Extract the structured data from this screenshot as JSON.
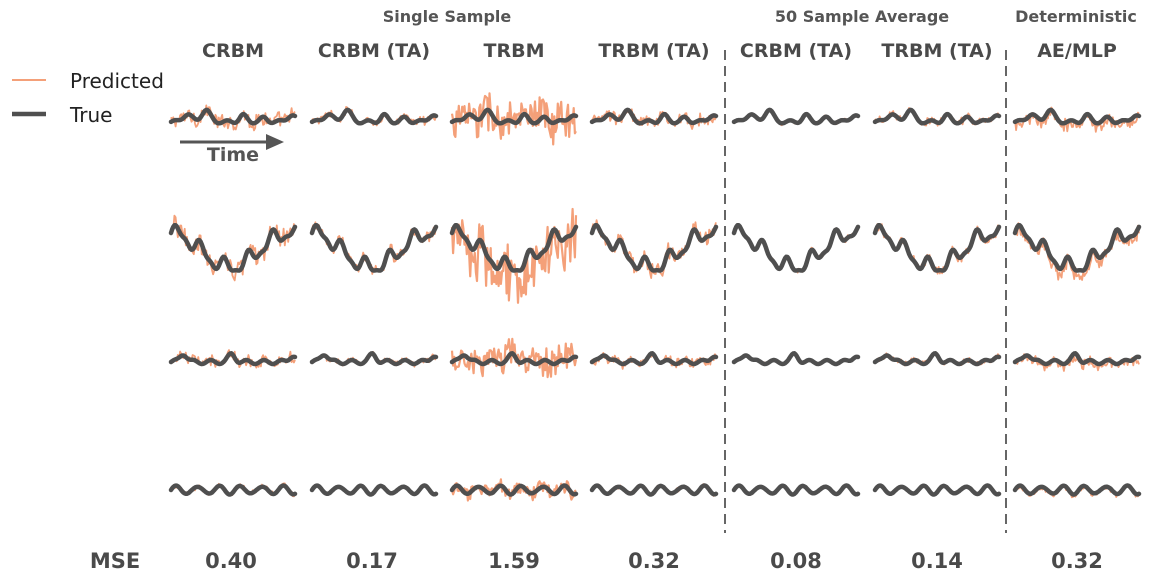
{
  "chart_data": {
    "type": "line",
    "group_titles": [
      "Single Sample",
      "50 Sample Average",
      "Deterministic"
    ],
    "columns": [
      "CRBM",
      "CRBM (TA)",
      "TRBM",
      "TRBM (TA)",
      "CRBM (TA)",
      "TRBM (TA)",
      "AE/MLP"
    ],
    "column_groups": [
      0,
      0,
      0,
      0,
      1,
      1,
      2
    ],
    "mse_label": "MSE",
    "mse_values": [
      "0.40",
      "0.17",
      "1.59",
      "0.32",
      "0.08",
      "0.14",
      "0.32"
    ],
    "legend": [
      {
        "label": "Predicted",
        "color": "#f4a079"
      },
      {
        "label": "True",
        "color": "#4f4f4f"
      }
    ],
    "time_label": "Time",
    "rows": 4,
    "grid": false,
    "colors": {
      "predicted": "#f4a079",
      "true": "#4f4f4f",
      "separator": "#666666"
    }
  }
}
